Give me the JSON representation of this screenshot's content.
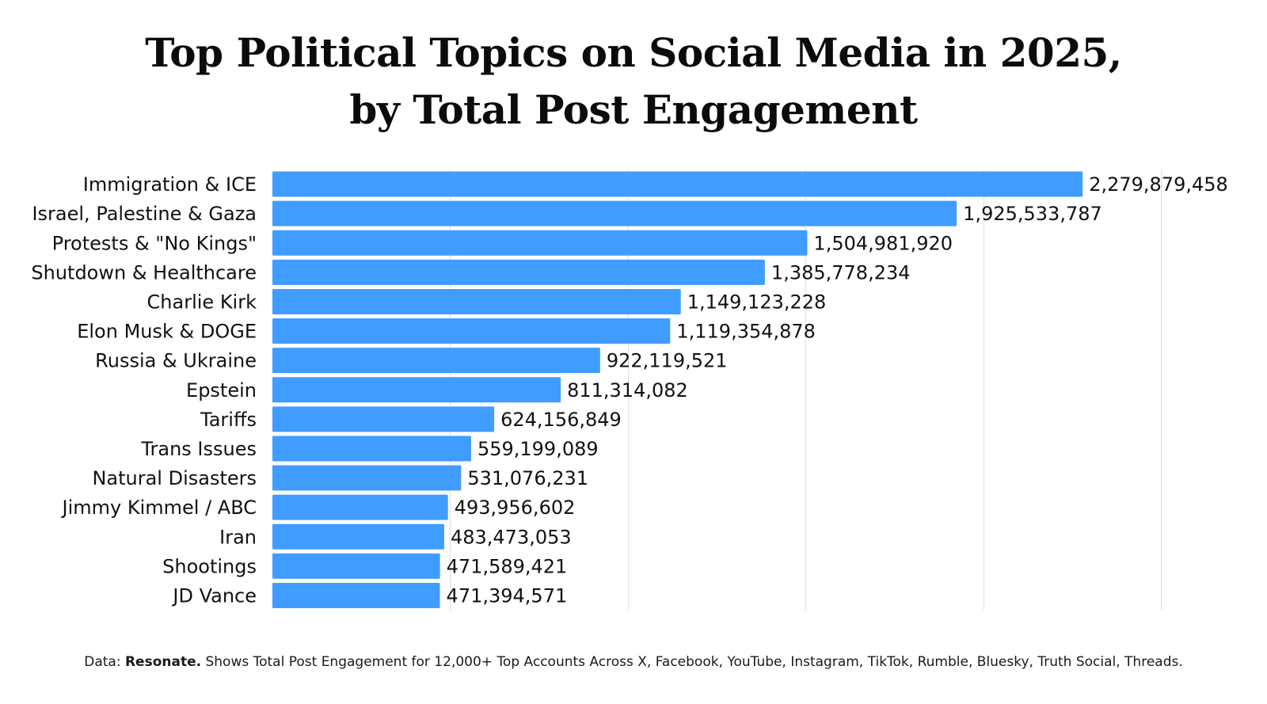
{
  "chart_data": {
    "type": "bar",
    "orientation": "horizontal",
    "title": "Top Political Topics on Social Media in 2025,",
    "subtitle": "by Total Post Engagement",
    "xlabel": "",
    "ylabel": "",
    "xlim": [
      0,
      2500000000
    ],
    "gridlines_at": [
      500000000,
      1000000000,
      1500000000,
      2000000000,
      2500000000
    ],
    "grid": true,
    "bar_color": "#409cff",
    "categories": [
      "Immigration & ICE",
      "Israel, Palestine & Gaza",
      "Protests & \"No Kings\"",
      "Shutdown & Healthcare",
      "Charlie Kirk",
      "Elon Musk & DOGE",
      "Russia & Ukraine",
      "Epstein",
      "Tariffs",
      "Trans Issues",
      "Natural Disasters",
      "Jimmy Kimmel / ABC",
      "Iran",
      "Shootings",
      "JD Vance"
    ],
    "values": [
      2279879458,
      1925533787,
      1504981920,
      1385778234,
      1149123228,
      1119354878,
      922119521,
      811314082,
      624156849,
      559199089,
      531076231,
      493956602,
      483473053,
      471589421,
      471394571
    ],
    "value_labels": [
      "2,279,879,458",
      "1,925,533,787",
      "1,504,981,920",
      "1,385,778,234",
      "1,149,123,228",
      "1,119,354,878",
      "922,119,521",
      "811,314,082",
      "624,156,849",
      "559,199,089",
      "531,076,231",
      "493,956,602",
      "483,473,053",
      "471,589,421",
      "471,394,571"
    ]
  },
  "footnote": {
    "prefix": "Data: ",
    "source": "Resonate.",
    "text": " Shows Total Post Engagement for 12,000+ Top Accounts Across X, Facebook, YouTube, Instagram, TikTok, Rumble, Bluesky, Truth Social, Threads."
  }
}
